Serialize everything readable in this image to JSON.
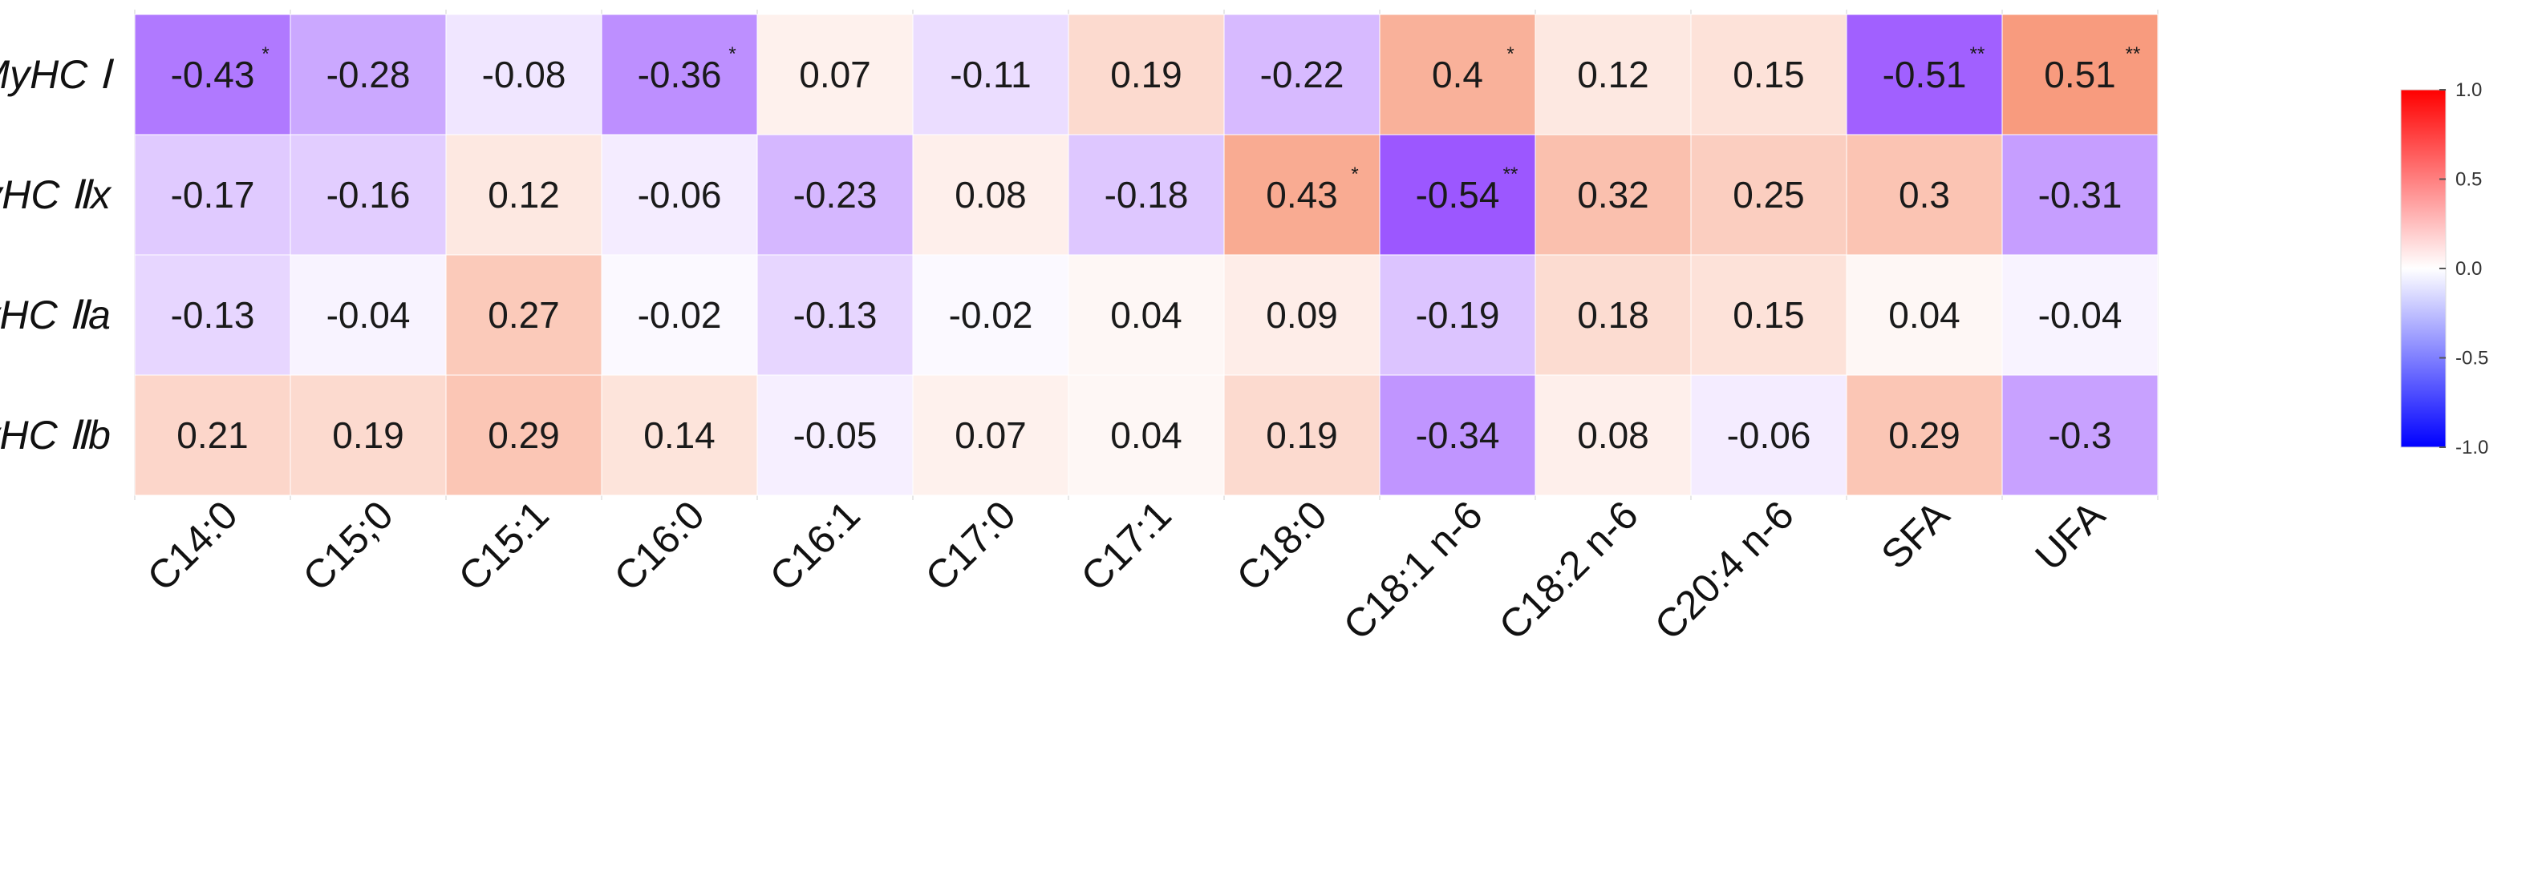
{
  "chart_data": {
    "type": "heatmap",
    "rows": [
      "MyHC Ⅰ",
      "MyHC Ⅱx",
      "MyHC Ⅱa",
      "MyHC Ⅱb"
    ],
    "columns": [
      "C14:0",
      "C15;0",
      "C15:1",
      "C16:0",
      "C16:1",
      "C17:0",
      "C17:1",
      "C18:0",
      "C18:1 n-6",
      "C18:2 n-6",
      "C20:4 n-6",
      "SFA",
      "UFA"
    ],
    "values": [
      [
        -0.43,
        -0.28,
        -0.08,
        -0.36,
        0.07,
        -0.11,
        0.19,
        -0.22,
        0.4,
        0.12,
        0.15,
        -0.51,
        0.51
      ],
      [
        -0.17,
        -0.16,
        0.12,
        -0.06,
        -0.23,
        0.08,
        -0.18,
        0.43,
        -0.54,
        0.32,
        0.25,
        0.3,
        -0.31
      ],
      [
        -0.13,
        -0.04,
        0.27,
        -0.02,
        -0.13,
        -0.02,
        0.04,
        0.09,
        -0.19,
        0.18,
        0.15,
        0.04,
        -0.04
      ],
      [
        0.21,
        0.19,
        0.29,
        0.14,
        -0.05,
        0.07,
        0.04,
        0.19,
        -0.34,
        0.08,
        -0.06,
        0.29,
        -0.3
      ]
    ],
    "significance": [
      [
        "*",
        "",
        "",
        "*",
        "",
        "",
        "",
        "",
        "*",
        "",
        "",
        "**",
        "**"
      ],
      [
        "",
        "",
        "",
        "",
        "",
        "",
        "",
        "*",
        "**",
        "",
        "",
        "",
        ""
      ],
      [
        "",
        "",
        "",
        "",
        "",
        "",
        "",
        "",
        "",
        "",
        "",
        "",
        ""
      ],
      [
        "",
        "",
        "",
        "",
        "",
        "",
        "",
        "",
        "",
        "",
        "",
        "",
        ""
      ]
    ],
    "color_scale": {
      "min": -1.0,
      "max": 1.0,
      "low_color": "#0000ff",
      "mid_color": "#ffffff",
      "high_color": "#ff0000",
      "cell_low_color": "#8c3cff",
      "ticks": [
        1.0,
        0.5,
        0.0,
        -0.5,
        -1.0
      ],
      "tick_labels": [
        "1.0",
        "0.5",
        "0.0",
        "-0.5",
        "-1.0"
      ]
    },
    "legend_position": "right"
  }
}
